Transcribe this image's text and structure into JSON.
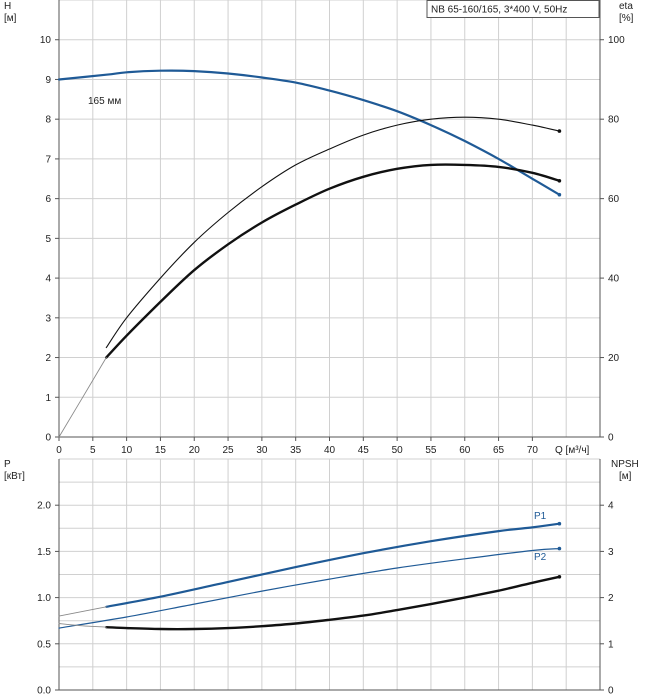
{
  "header": {
    "model": "NB 65-160/165, 3*400 V, 50Hz"
  },
  "colors": {
    "blue": "#1f5a96",
    "black": "#111111",
    "thin": "#555555",
    "grid": "#d0d0d0"
  },
  "chart_data": [
    {
      "type": "line",
      "panel": "top",
      "x_range": [
        0,
        80
      ],
      "x_ticks": [
        0,
        5,
        10,
        15,
        20,
        25,
        30,
        35,
        40,
        45,
        50,
        55,
        60,
        65,
        70
      ],
      "x_label": "Q [м³/ч]",
      "y_left": {
        "label": "H",
        "unit": "[м]",
        "range": [
          0,
          11
        ],
        "ticks": [
          0,
          1,
          2,
          3,
          4,
          5,
          6,
          7,
          8,
          9,
          10
        ]
      },
      "y_right": {
        "label": "eta",
        "unit": "[%]",
        "range": [
          0,
          110
        ],
        "ticks": [
          0,
          20,
          40,
          60,
          80,
          100
        ]
      },
      "annotation": "165 мм",
      "series": [
        {
          "id": "H",
          "axis": "left",
          "style": "blue-thick",
          "points": [
            [
              0,
              9.0
            ],
            [
              7,
              9.12
            ],
            [
              10,
              9.18
            ],
            [
              15,
              9.22
            ],
            [
              20,
              9.21
            ],
            [
              25,
              9.15
            ],
            [
              30,
              9.05
            ],
            [
              35,
              8.92
            ],
            [
              40,
              8.72
            ],
            [
              45,
              8.48
            ],
            [
              50,
              8.2
            ],
            [
              55,
              7.85
            ],
            [
              60,
              7.45
            ],
            [
              65,
              7.0
            ],
            [
              70,
              6.5
            ],
            [
              74,
              6.1
            ]
          ]
        },
        {
          "id": "eta",
          "axis": "right",
          "style": "thin-black",
          "points": [
            [
              7,
              22.5
            ],
            [
              10,
              30
            ],
            [
              15,
              40
            ],
            [
              20,
              49
            ],
            [
              25,
              56.5
            ],
            [
              30,
              63
            ],
            [
              35,
              68.5
            ],
            [
              40,
              72.5
            ],
            [
              45,
              76
            ],
            [
              50,
              78.5
            ],
            [
              55,
              80
            ],
            [
              60,
              80.5
            ],
            [
              65,
              80
            ],
            [
              70,
              78.5
            ],
            [
              74,
              77
            ]
          ]
        },
        {
          "id": "eta-bold",
          "axis": "right",
          "style": "thick-black",
          "points": [
            [
              7,
              20
            ],
            [
              10,
              25.5
            ],
            [
              15,
              34
            ],
            [
              20,
              42
            ],
            [
              25,
              48.5
            ],
            [
              30,
              54
            ],
            [
              35,
              58.5
            ],
            [
              40,
              62.5
            ],
            [
              45,
              65.5
            ],
            [
              50,
              67.5
            ],
            [
              55,
              68.5
            ],
            [
              60,
              68.5
            ],
            [
              65,
              68
            ],
            [
              70,
              66.5
            ],
            [
              74,
              64.5
            ]
          ]
        },
        {
          "id": "eta-extension",
          "axis": "right",
          "style": "thin-grey",
          "points": [
            [
              0,
              0
            ],
            [
              3.5,
              10
            ],
            [
              7,
              20
            ]
          ]
        }
      ]
    },
    {
      "type": "line",
      "panel": "bottom",
      "x_range": [
        0,
        80
      ],
      "y_left": {
        "label": "P",
        "unit": "[кВт]",
        "range": [
          0,
          2.5
        ],
        "ticks": [
          "0.0",
          "0.5",
          "1.0",
          "1.5",
          "2.0"
        ]
      },
      "y_right": {
        "label": "NPSH",
        "unit": "[м]",
        "range": [
          0,
          5
        ],
        "ticks": [
          0,
          1,
          2,
          3,
          4
        ]
      },
      "series": [
        {
          "id": "P1",
          "label": "P1",
          "axis": "left",
          "style": "blue-thick",
          "points": [
            [
              7,
              0.9
            ],
            [
              15,
              1.01
            ],
            [
              25,
              1.17
            ],
            [
              35,
              1.33
            ],
            [
              45,
              1.48
            ],
            [
              55,
              1.61
            ],
            [
              65,
              1.72
            ],
            [
              70,
              1.76
            ],
            [
              74,
              1.8
            ]
          ]
        },
        {
          "id": "P1-extension",
          "axis": "left",
          "style": "thin-grey",
          "points": [
            [
              0,
              0.8
            ],
            [
              7,
              0.9
            ]
          ]
        },
        {
          "id": "P2",
          "label": "P2",
          "axis": "left",
          "style": "blue-thin",
          "points": [
            [
              0,
              0.67
            ],
            [
              10,
              0.79
            ],
            [
              20,
              0.93
            ],
            [
              30,
              1.07
            ],
            [
              40,
              1.2
            ],
            [
              50,
              1.32
            ],
            [
              60,
              1.42
            ],
            [
              70,
              1.51
            ],
            [
              74,
              1.53
            ]
          ]
        },
        {
          "id": "NPSH",
          "axis": "right",
          "style": "thick-black",
          "points": [
            [
              7,
              1.36
            ],
            [
              10,
              1.34
            ],
            [
              15,
              1.32
            ],
            [
              20,
              1.32
            ],
            [
              25,
              1.34
            ],
            [
              30,
              1.38
            ],
            [
              35,
              1.44
            ],
            [
              40,
              1.52
            ],
            [
              45,
              1.61
            ],
            [
              50,
              1.73
            ],
            [
              55,
              1.86
            ],
            [
              60,
              2.0
            ],
            [
              65,
              2.15
            ],
            [
              70,
              2.32
            ],
            [
              74,
              2.45
            ]
          ]
        },
        {
          "id": "NPSH-extension",
          "axis": "right",
          "style": "thin-grey",
          "points": [
            [
              0,
              1.44
            ],
            [
              3.5,
              1.39
            ],
            [
              7,
              1.36
            ]
          ]
        }
      ]
    }
  ]
}
